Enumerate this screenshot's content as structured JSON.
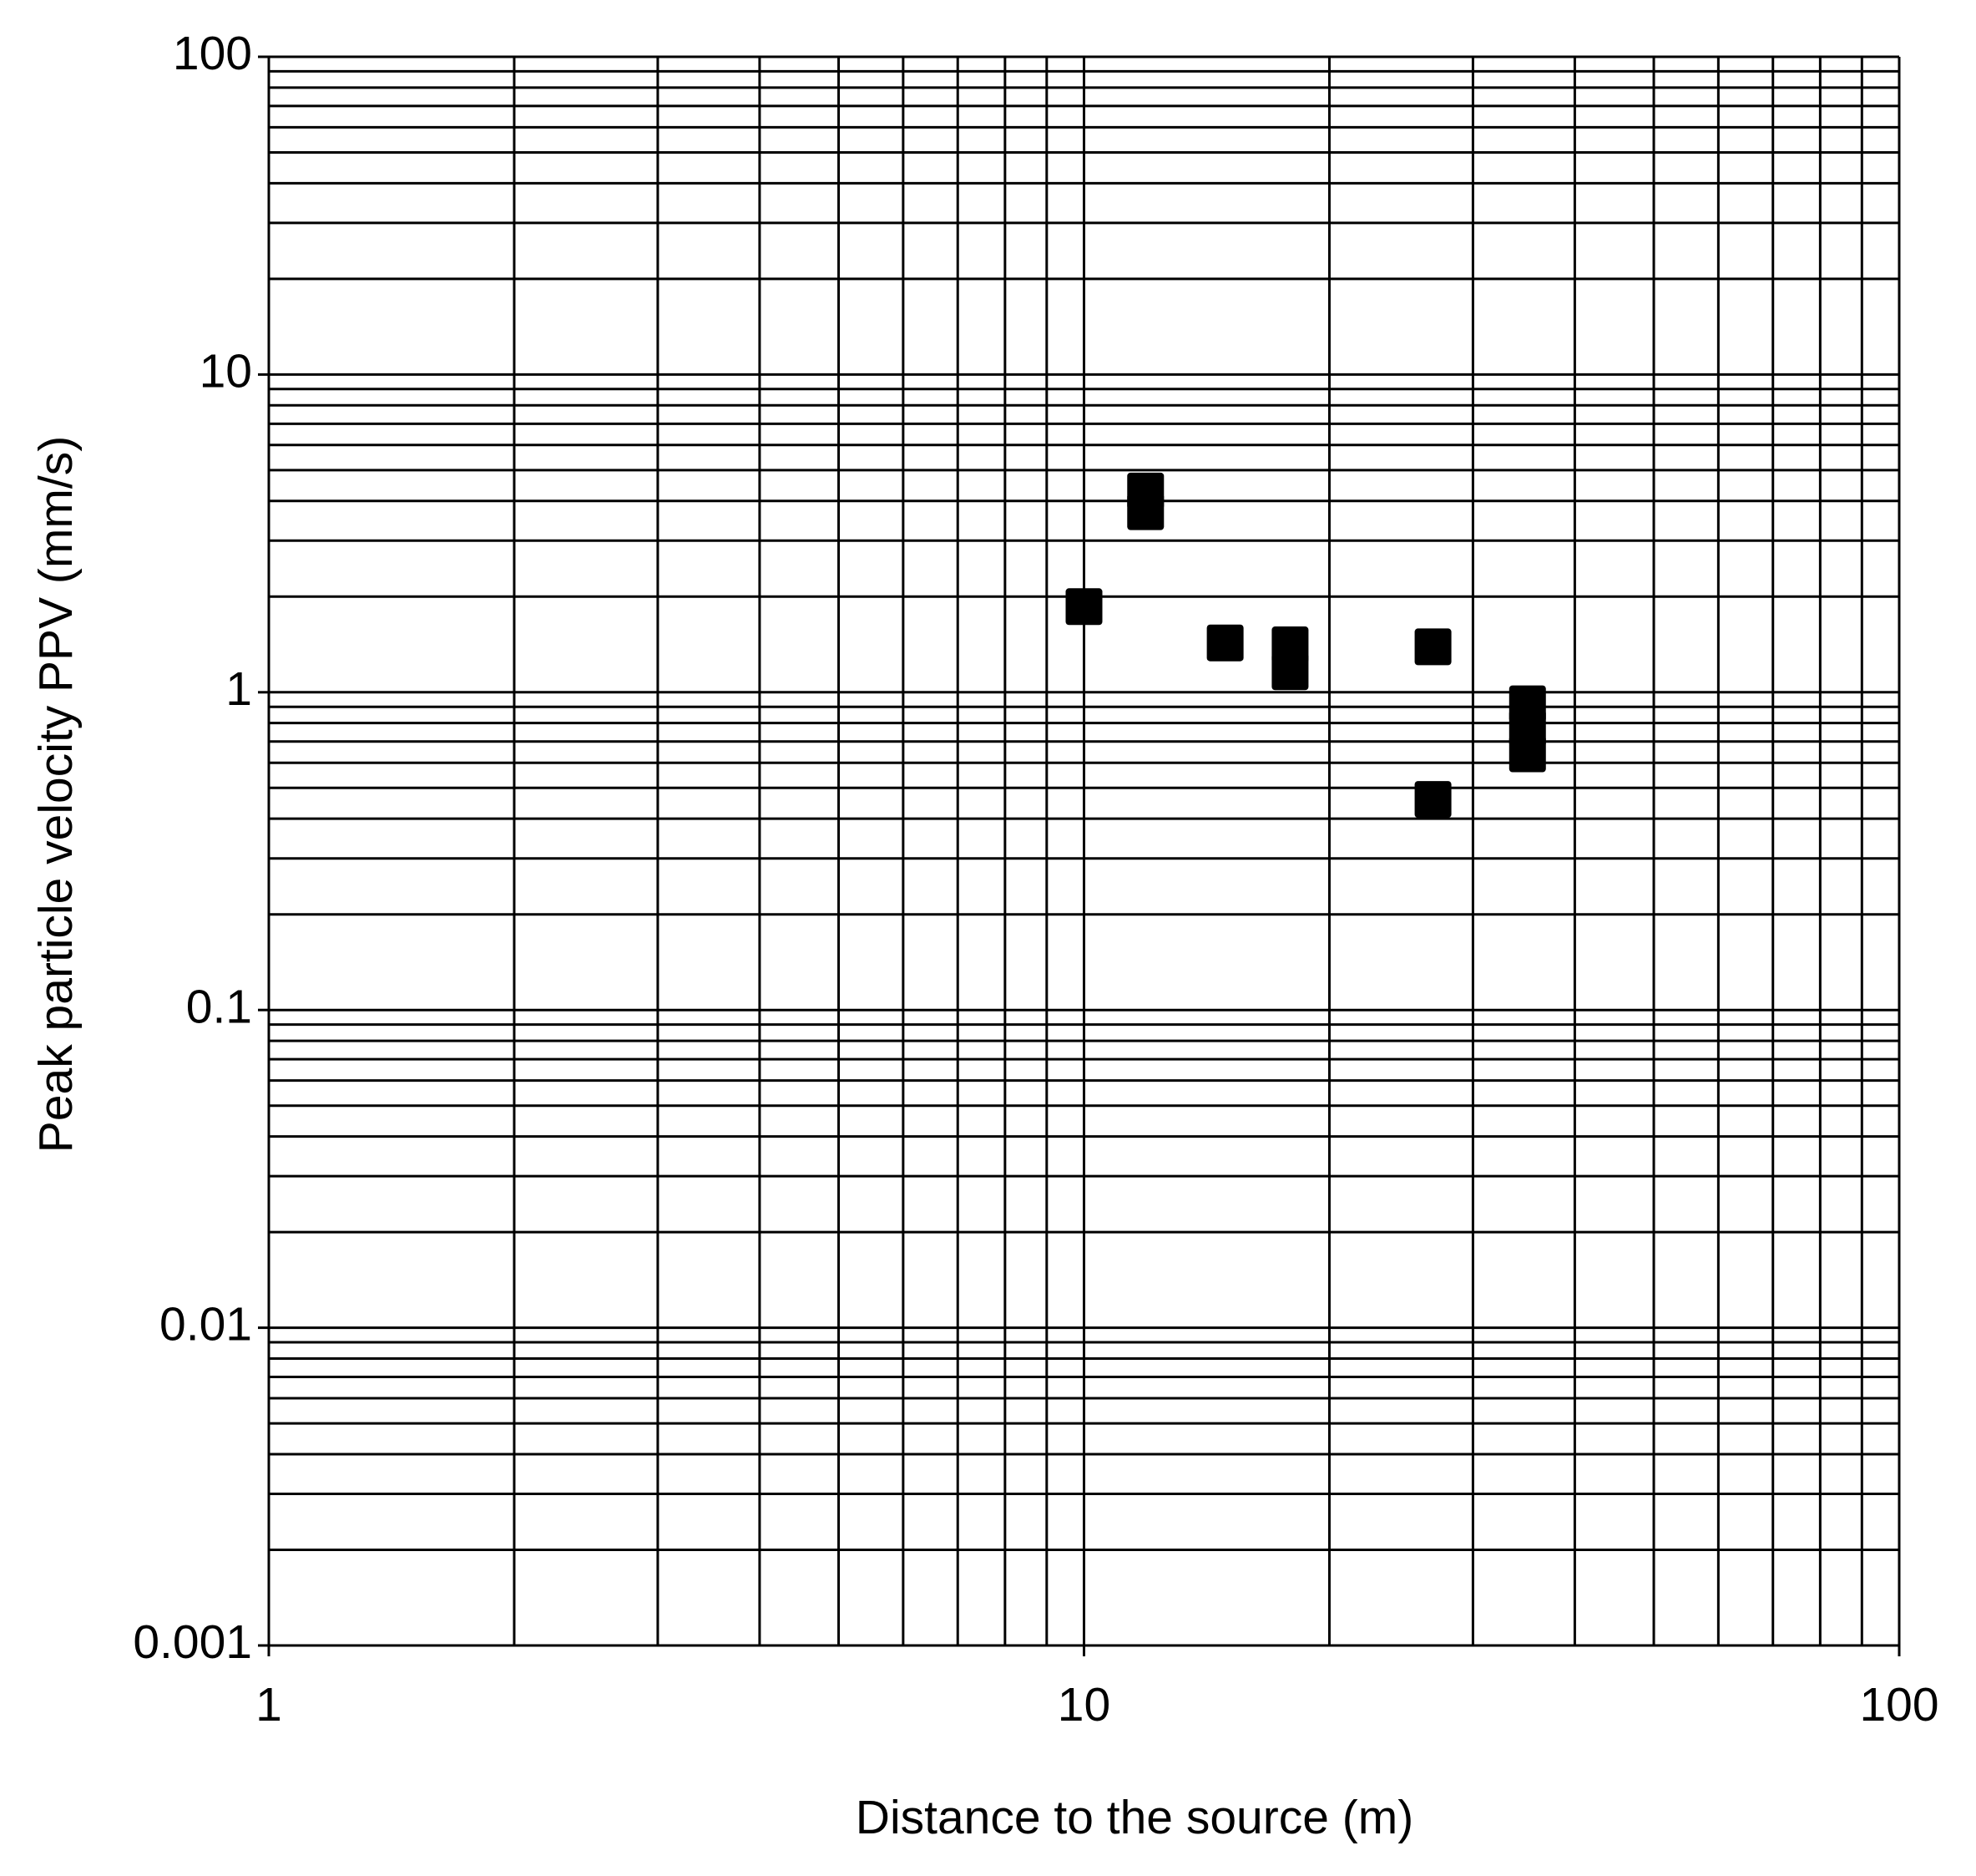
{
  "chart_data": {
    "type": "scatter",
    "x_label": "Distance to the source (m)",
    "y_label": "Peak particle velocity PPV  (mm/s)",
    "series": [
      {
        "color": "#000000",
        "x": [
          10,
          11.9,
          11.9,
          14.9,
          17.9,
          17.9,
          26.8,
          26.8,
          35,
          35,
          35
        ],
        "values": [
          1.86,
          4.3,
          3.7,
          1.43,
          1.41,
          1.16,
          1.39,
          0.46,
          0.92,
          0.77,
          0.64
        ]
      }
    ],
    "xlim": [
      1,
      100
    ],
    "xticks": [
      1,
      10,
      100
    ],
    "ylim": [
      0.001,
      100
    ],
    "yticks": [
      0.001,
      0.01,
      0.1,
      1,
      10,
      100
    ],
    "xlog": true,
    "ylog": true,
    "grid": true,
    "minor_grid": true
  }
}
